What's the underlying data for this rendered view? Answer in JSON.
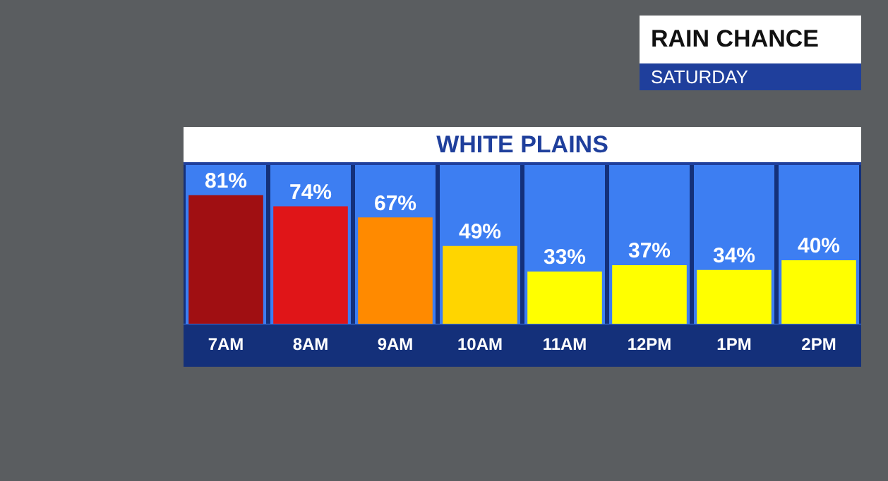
{
  "chart_data": {
    "type": "bar",
    "title": "RAIN CHANCE",
    "subtitle": "SATURDAY",
    "annotations": [
      "WHITE PLAINS"
    ],
    "categories": [
      "7AM",
      "8AM",
      "9AM",
      "10AM",
      "11AM",
      "12PM",
      "1PM",
      "2PM"
    ],
    "values": [
      81,
      74,
      67,
      49,
      33,
      37,
      34,
      40
    ],
    "colors": [
      "#a00f12",
      "#e01518",
      "#ff8a00",
      "#ffd500",
      "#ffff00",
      "#ffff00",
      "#ffff00",
      "#ffff00"
    ],
    "value_labels": [
      "81%",
      "74%",
      "67%",
      "49%",
      "33%",
      "37%",
      "34%",
      "40%"
    ],
    "grid": "x",
    "legend": false
  }
}
